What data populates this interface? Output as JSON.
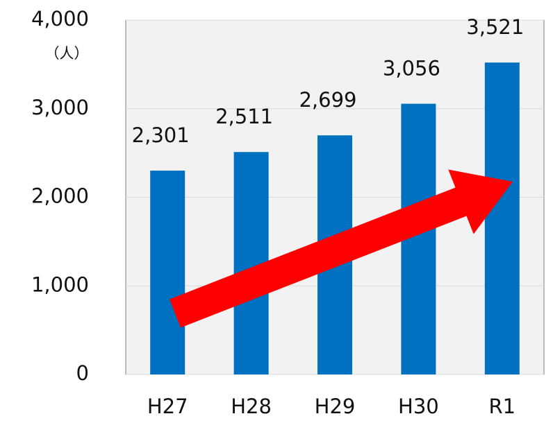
{
  "chart_data": {
    "type": "bar",
    "unit_label": "（人）",
    "categories": [
      "H27",
      "H28",
      "H29",
      "H30",
      "R1"
    ],
    "values": [
      2301,
      2511,
      2699,
      3056,
      3521
    ],
    "value_labels": [
      "2,301",
      "2,511",
      "2,699",
      "3,056",
      "3,521"
    ],
    "color": "#0070c0",
    "ylim": [
      0,
      4000
    ],
    "yticks": [
      0,
      {
        "value": 1000,
        "label": "1,000"
      },
      {
        "value": 2000,
        "label": "2,000"
      },
      {
        "value": 3000,
        "label": "3,000"
      },
      {
        "value": 4000,
        "label": "4,000"
      }
    ],
    "grid": true
  }
}
